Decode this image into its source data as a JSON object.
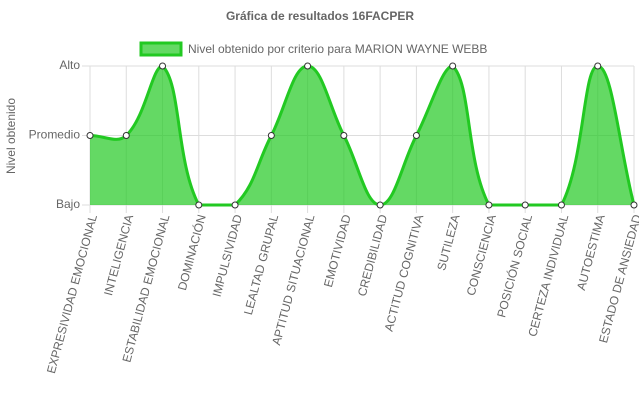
{
  "chart_data": {
    "type": "line",
    "title": "Gráfica de resultados 16FACPER",
    "y_label": "Nivel obtenido",
    "categories": [
      "EXPRESIVIDAD EMOCIONAL",
      "INTELIGENCIA",
      "ESTABILIDAD EMOCIONAL",
      "DOMINACIÓN",
      "IMPULSIVIDAD",
      "LEALTAD GRUPAL",
      "APTITUD SITUACIONAL",
      "EMOTIVIDAD",
      "CREDIBILIDAD",
      "ACTITUD COGNITIVA",
      "SUTILEZA",
      "CONSCIENCIA",
      "POSICIÓN SOCIAL",
      "CERTEZA INDIVIDUAL",
      "AUTOESTIMA",
      "ESTADO DE ANSIEDAD"
    ],
    "series": [
      {
        "name": "Nivel obtenido por criterio para MARION WAYNE WEBB",
        "color": "#22c922",
        "fill": "rgba(34,201,34,0.7)",
        "values": [
          2,
          2,
          3,
          1,
          1,
          2,
          3,
          2,
          1,
          2,
          3,
          1,
          1,
          1,
          3,
          1
        ]
      }
    ],
    "ylim": [
      1,
      3
    ],
    "yticks": [
      {
        "value": 1,
        "label": "Bajo"
      },
      {
        "value": 2,
        "label": "Promedio"
      },
      {
        "value": 3,
        "label": "Alto"
      }
    ],
    "grid": true,
    "legend": "top"
  }
}
